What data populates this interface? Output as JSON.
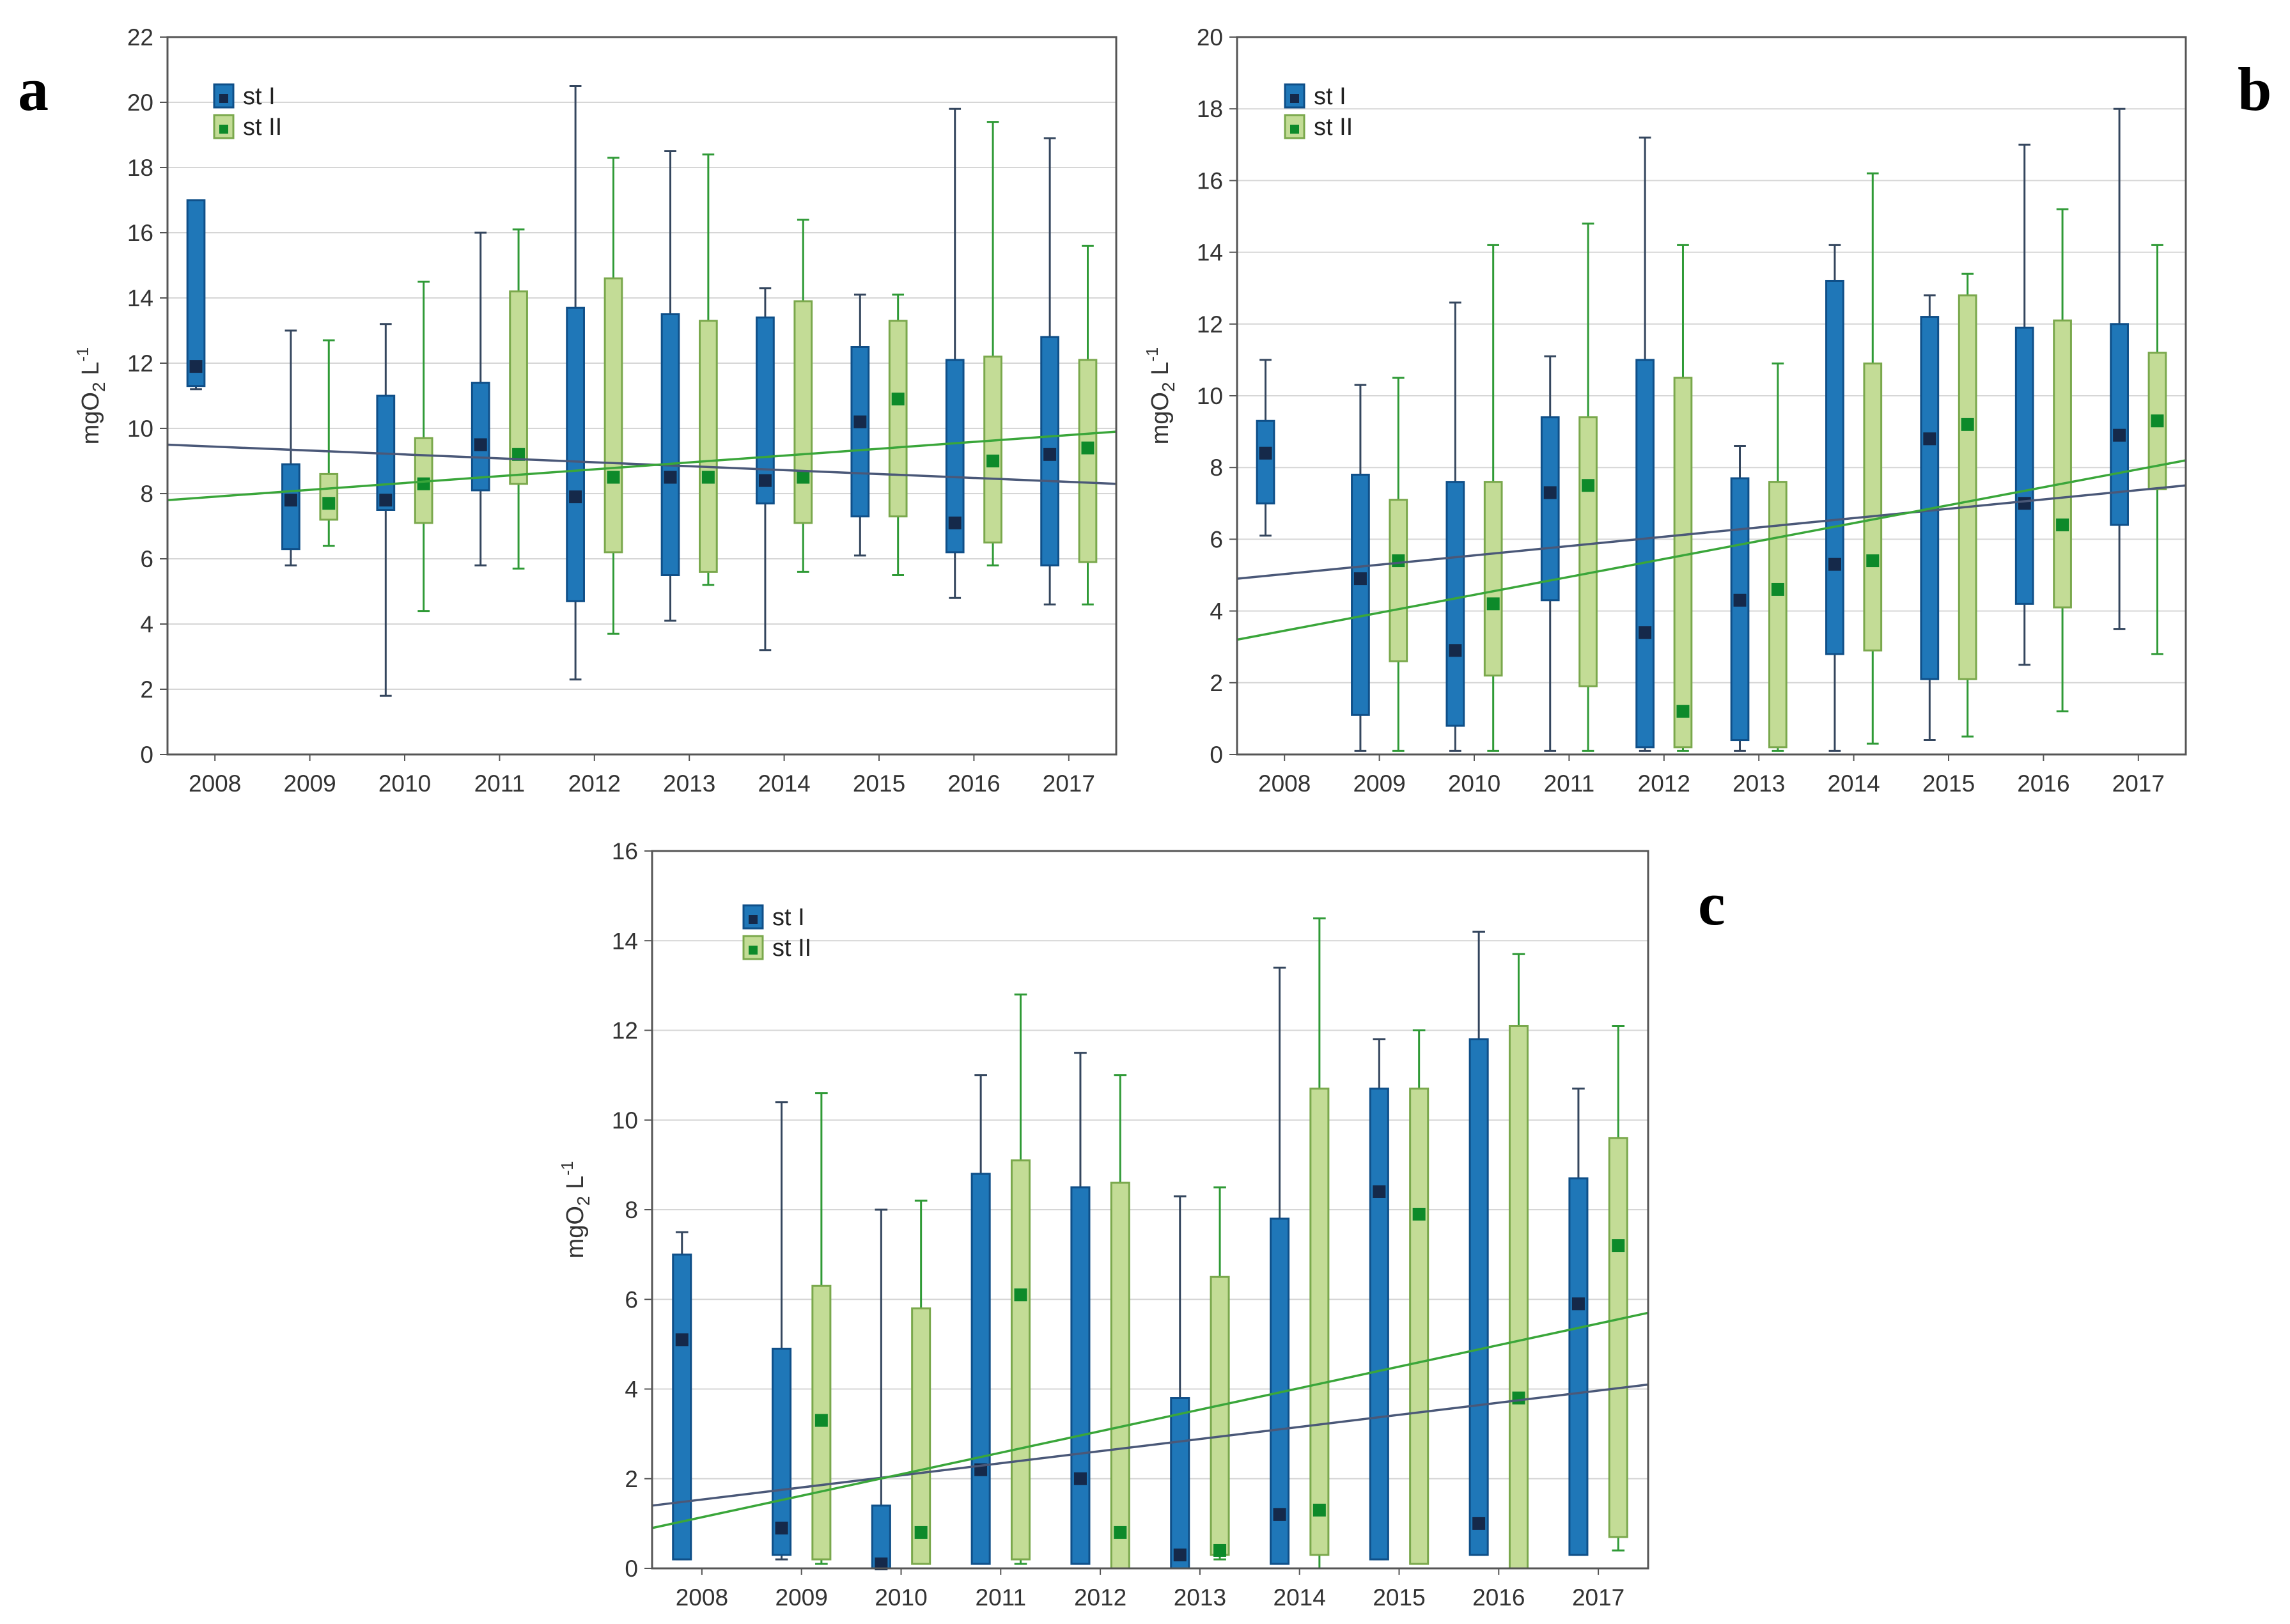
{
  "colors": {
    "st1_fill": "#1f77b8",
    "st1_stroke": "#0f4f88",
    "st1_marker": "#15294a",
    "st1_whisker": "#34465e",
    "st1_trend": "#4a5878",
    "st2_fill": "#c3dc96",
    "st2_stroke": "#7aa84c",
    "st2_marker": "#0d8a2a",
    "st2_whisker": "#2f9a36",
    "st2_trend": "#3aa63a",
    "grid": "#d6d6d6",
    "frame": "#555555"
  },
  "chart_data": [
    {
      "panel": "a",
      "type": "box",
      "ylabel_main": "mgO",
      "ylabel_sub": "2",
      "ylabel_unit": " L",
      "ylabel_sup": "-1",
      "ylim": [
        0,
        22
      ],
      "yticks": [
        "0",
        "2",
        "4",
        "6",
        "8",
        "10",
        "12",
        "14",
        "16",
        "18",
        "20",
        "22"
      ],
      "categories": [
        "2008",
        "2009",
        "2010",
        "2011",
        "2012",
        "2013",
        "2014",
        "2015",
        "2016",
        "2017"
      ],
      "legend": [
        "st I",
        "st II"
      ],
      "series": [
        {
          "name": "st I",
          "boxes": [
            {
              "min": 11.2,
              "q1": 11.3,
              "med": 11.9,
              "q3": 17.0,
              "max": 17.0
            },
            {
              "min": 5.8,
              "q1": 6.3,
              "med": 7.8,
              "q3": 8.9,
              "max": 13.0
            },
            {
              "min": 1.8,
              "q1": 7.5,
              "med": 7.8,
              "q3": 11.0,
              "max": 13.2
            },
            {
              "min": 5.8,
              "q1": 8.1,
              "med": 9.5,
              "q3": 11.4,
              "max": 16.0
            },
            {
              "min": 2.3,
              "q1": 4.7,
              "med": 7.9,
              "q3": 13.7,
              "max": 20.5
            },
            {
              "min": 4.1,
              "q1": 5.5,
              "med": 8.5,
              "q3": 13.5,
              "max": 18.5
            },
            {
              "min": 3.2,
              "q1": 7.7,
              "med": 8.4,
              "q3": 13.4,
              "max": 14.3
            },
            {
              "min": 6.1,
              "q1": 7.3,
              "med": 10.2,
              "q3": 12.5,
              "max": 14.1
            },
            {
              "min": 4.8,
              "q1": 6.2,
              "med": 7.1,
              "q3": 12.1,
              "max": 19.8
            },
            {
              "min": 4.6,
              "q1": 5.8,
              "med": 9.2,
              "q3": 12.8,
              "max": 18.9
            }
          ],
          "trend": [
            9.5,
            8.3
          ]
        },
        {
          "name": "st II",
          "boxes": [
            null,
            {
              "min": 6.4,
              "q1": 7.2,
              "med": 7.7,
              "q3": 8.6,
              "max": 12.7
            },
            {
              "min": 4.4,
              "q1": 7.1,
              "med": 8.3,
              "q3": 9.7,
              "max": 14.5
            },
            {
              "min": 5.7,
              "q1": 8.3,
              "med": 9.2,
              "q3": 14.2,
              "max": 16.1
            },
            {
              "min": 3.7,
              "q1": 6.2,
              "med": 8.5,
              "q3": 14.6,
              "max": 18.3
            },
            {
              "min": 5.2,
              "q1": 5.6,
              "med": 8.5,
              "q3": 13.3,
              "max": 18.4
            },
            {
              "min": 5.6,
              "q1": 7.1,
              "med": 8.5,
              "q3": 13.9,
              "max": 16.4
            },
            {
              "min": 5.5,
              "q1": 7.3,
              "med": 10.9,
              "q3": 13.3,
              "max": 14.1
            },
            {
              "min": 5.8,
              "q1": 6.5,
              "med": 9.0,
              "q3": 12.2,
              "max": 19.4
            },
            {
              "min": 4.6,
              "q1": 5.9,
              "med": 9.4,
              "q3": 12.1,
              "max": 15.6
            }
          ],
          "trend": [
            7.8,
            9.9
          ]
        }
      ]
    },
    {
      "panel": "b",
      "type": "box",
      "ylabel_main": "mgO",
      "ylabel_sub": "2",
      "ylabel_unit": " L",
      "ylabel_sup": "-1",
      "ylim": [
        0,
        20
      ],
      "yticks": [
        "0",
        "2",
        "4",
        "6",
        "8",
        "10",
        "12",
        "14",
        "16",
        "18",
        "20"
      ],
      "categories": [
        "2008",
        "2009",
        "2010",
        "2011",
        "2012",
        "2013",
        "2014",
        "2015",
        "2016",
        "2017"
      ],
      "legend": [
        "st I",
        "st II"
      ],
      "series": [
        {
          "name": "st I",
          "boxes": [
            {
              "min": 6.1,
              "q1": 7.0,
              "med": 8.4,
              "q3": 9.3,
              "max": 11.0
            },
            {
              "min": 0.1,
              "q1": 1.1,
              "med": 4.9,
              "q3": 7.8,
              "max": 10.3
            },
            {
              "min": 0.1,
              "q1": 0.8,
              "med": 2.9,
              "q3": 7.6,
              "max": 12.6
            },
            {
              "min": 0.1,
              "q1": 4.3,
              "med": 7.3,
              "q3": 9.4,
              "max": 11.1
            },
            {
              "min": 0.1,
              "q1": 0.2,
              "med": 3.4,
              "q3": 11.0,
              "max": 17.2
            },
            {
              "min": 0.1,
              "q1": 0.4,
              "med": 4.3,
              "q3": 7.7,
              "max": 8.6
            },
            {
              "min": 0.1,
              "q1": 2.8,
              "med": 5.3,
              "q3": 13.2,
              "max": 14.2
            },
            {
              "min": 0.4,
              "q1": 2.1,
              "med": 8.8,
              "q3": 12.2,
              "max": 12.8
            },
            {
              "min": 2.5,
              "q1": 4.2,
              "med": 7.0,
              "q3": 11.9,
              "max": 17.0
            },
            {
              "min": 3.5,
              "q1": 6.4,
              "med": 8.9,
              "q3": 12.0,
              "max": 18.0
            }
          ],
          "trend": [
            4.9,
            7.5
          ]
        },
        {
          "name": "st II",
          "boxes": [
            null,
            {
              "min": 0.1,
              "q1": 2.6,
              "med": 5.4,
              "q3": 7.1,
              "max": 10.5
            },
            {
              "min": 0.1,
              "q1": 2.2,
              "med": 4.2,
              "q3": 7.6,
              "max": 14.2
            },
            {
              "min": 0.1,
              "q1": 1.9,
              "med": 7.5,
              "q3": 9.4,
              "max": 14.8
            },
            {
              "min": 0.1,
              "q1": 0.2,
              "med": 1.2,
              "q3": 10.5,
              "max": 14.2
            },
            {
              "min": 0.1,
              "q1": 0.2,
              "med": 4.6,
              "q3": 7.6,
              "max": 10.9
            },
            {
              "min": 0.3,
              "q1": 2.9,
              "med": 5.4,
              "q3": 10.9,
              "max": 16.2
            },
            {
              "min": 0.5,
              "q1": 2.1,
              "med": 9.2,
              "q3": 12.8,
              "max": 13.4
            },
            {
              "min": 1.2,
              "q1": 4.1,
              "med": 6.4,
              "q3": 12.1,
              "max": 15.2
            },
            {
              "min": 2.8,
              "q1": 7.4,
              "med": 9.3,
              "q3": 11.2,
              "max": 14.2
            }
          ],
          "trend": [
            3.2,
            8.2
          ]
        }
      ]
    },
    {
      "panel": "c",
      "type": "box",
      "ylabel_main": "mgO",
      "ylabel_sub": "2",
      "ylabel_unit": " L",
      "ylabel_sup": "-1",
      "ylim": [
        0,
        16
      ],
      "yticks": [
        "0",
        "2",
        "4",
        "6",
        "8",
        "10",
        "12",
        "14",
        "16"
      ],
      "categories": [
        "2008",
        "2009",
        "2010",
        "2011",
        "2012",
        "2013",
        "2014",
        "2015",
        "2016",
        "2017"
      ],
      "legend": [
        "st I",
        "st II"
      ],
      "series": [
        {
          "name": "st I",
          "boxes": [
            {
              "min": 0.2,
              "q1": 0.2,
              "med": 5.1,
              "q3": 7.0,
              "max": 7.5
            },
            {
              "min": 0.2,
              "q1": 0.3,
              "med": 0.9,
              "q3": 4.9,
              "max": 10.4
            },
            {
              "min": 0.0,
              "q1": 0.0,
              "med": 0.1,
              "q3": 1.4,
              "max": 8.0
            },
            {
              "min": 0.1,
              "q1": 0.1,
              "med": 2.2,
              "q3": 8.8,
              "max": 11.0
            },
            {
              "min": 0.1,
              "q1": 0.1,
              "med": 2.0,
              "q3": 8.5,
              "max": 11.5
            },
            {
              "min": 0.0,
              "q1": 0.0,
              "med": 0.3,
              "q3": 3.8,
              "max": 8.3
            },
            {
              "min": 0.1,
              "q1": 0.1,
              "med": 1.2,
              "q3": 7.8,
              "max": 13.4
            },
            {
              "min": 0.2,
              "q1": 0.2,
              "med": 8.4,
              "q3": 10.7,
              "max": 11.8
            },
            {
              "min": 0.3,
              "q1": 0.3,
              "med": 1.0,
              "q3": 11.8,
              "max": 14.2
            },
            {
              "min": 0.3,
              "q1": 0.3,
              "med": 5.9,
              "q3": 8.7,
              "max": 10.7
            }
          ],
          "trend": [
            1.4,
            4.1
          ]
        },
        {
          "name": "st II",
          "boxes": [
            null,
            {
              "min": 0.1,
              "q1": 0.2,
              "med": 3.3,
              "q3": 6.3,
              "max": 10.6
            },
            {
              "min": 0.1,
              "q1": 0.1,
              "med": 0.8,
              "q3": 5.8,
              "max": 8.2
            },
            {
              "min": 0.1,
              "q1": 0.2,
              "med": 6.1,
              "q3": 9.1,
              "max": 12.8
            },
            {
              "min": 0.0,
              "q1": 0.0,
              "med": 0.8,
              "q3": 8.6,
              "max": 11.0
            },
            {
              "min": 0.2,
              "q1": 0.3,
              "med": 0.4,
              "q3": 6.5,
              "max": 8.5
            },
            {
              "min": 0.0,
              "q1": 0.3,
              "med": 1.3,
              "q3": 10.7,
              "max": 14.5
            },
            {
              "min": 0.1,
              "q1": 0.1,
              "med": 7.9,
              "q3": 10.7,
              "max": 12.0
            },
            {
              "min": 0.0,
              "q1": 0.0,
              "med": 3.8,
              "q3": 12.1,
              "max": 13.7
            },
            {
              "min": 0.4,
              "q1": 0.7,
              "med": 7.2,
              "q3": 9.6,
              "max": 12.1
            }
          ],
          "trend": [
            0.9,
            5.7
          ]
        }
      ]
    }
  ]
}
